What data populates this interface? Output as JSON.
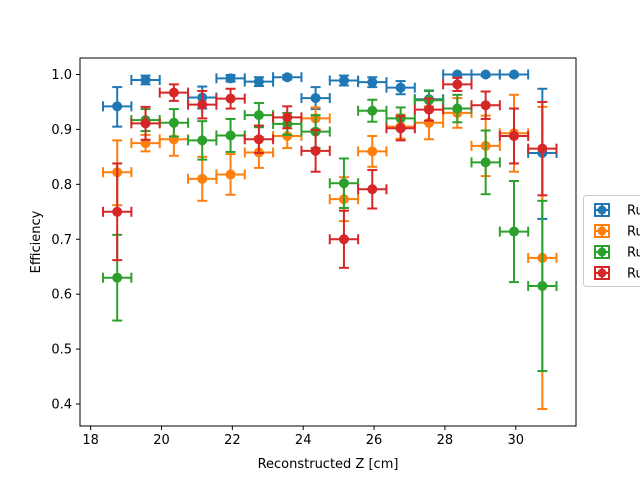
{
  "chart_data": {
    "type": "scatter",
    "title": "",
    "xlabel": "Reconstructed Z [cm]",
    "ylabel": "Efficiency",
    "xlim": [
      17.7,
      31.7
    ],
    "ylim": [
      0.36,
      1.03
    ],
    "xticks": [
      18,
      20,
      22,
      24,
      26,
      28,
      30
    ],
    "yticks": [
      0.4,
      0.5,
      0.6,
      0.7,
      0.8,
      0.9,
      1.0
    ],
    "xtick_labels": [
      "18",
      "20",
      "22",
      "24",
      "26",
      "28",
      "30"
    ],
    "ytick_labels": [
      "0.4",
      "0.5",
      "0.6",
      "0.7",
      "0.8",
      "0.9",
      "1.0"
    ],
    "grid": false,
    "legend_position": "right, partially clipped",
    "x_half_width": 0.4,
    "series": [
      {
        "name": "Ru",
        "color": "#1f77b4",
        "points": [
          {
            "x": 18.75,
            "y": 0.942,
            "yerr_low": 0.037,
            "yerr_high": 0.035
          },
          {
            "x": 19.55,
            "y": 0.99,
            "yerr_low": 0.008,
            "yerr_high": 0.008
          },
          {
            "x": 21.15,
            "y": 0.958,
            "yerr_low": 0.02,
            "yerr_high": 0.02
          },
          {
            "x": 21.95,
            "y": 0.993,
            "yerr_low": 0.006,
            "yerr_high": 0.006
          },
          {
            "x": 22.75,
            "y": 0.987,
            "yerr_low": 0.008,
            "yerr_high": 0.008
          },
          {
            "x": 23.55,
            "y": 0.995,
            "yerr_low": 0.004,
            "yerr_high": 0.004
          },
          {
            "x": 24.35,
            "y": 0.957,
            "yerr_low": 0.02,
            "yerr_high": 0.02
          },
          {
            "x": 25.15,
            "y": 0.989,
            "yerr_low": 0.009,
            "yerr_high": 0.009
          },
          {
            "x": 25.95,
            "y": 0.986,
            "yerr_low": 0.009,
            "yerr_high": 0.009
          },
          {
            "x": 26.75,
            "y": 0.976,
            "yerr_low": 0.012,
            "yerr_high": 0.012
          },
          {
            "x": 27.55,
            "y": 0.955,
            "yerr_low": 0.015,
            "yerr_high": 0.015
          },
          {
            "x": 28.35,
            "y": 1.0,
            "yerr_low": 0.004,
            "yerr_high": 0.0
          },
          {
            "x": 29.15,
            "y": 1.0,
            "yerr_low": 0.003,
            "yerr_high": 0.0
          },
          {
            "x": 29.95,
            "y": 1.0,
            "yerr_low": 0.003,
            "yerr_high": 0.0
          },
          {
            "x": 30.75,
            "y": 0.857,
            "yerr_low": 0.12,
            "yerr_high": 0.117
          }
        ]
      },
      {
        "name": "Ru",
        "color": "#ff7f0e",
        "points": [
          {
            "x": 18.75,
            "y": 0.822,
            "yerr_low": 0.06,
            "yerr_high": 0.058
          },
          {
            "x": 19.55,
            "y": 0.875,
            "yerr_low": 0.015,
            "yerr_high": 0.015
          },
          {
            "x": 20.35,
            "y": 0.882,
            "yerr_low": 0.03,
            "yerr_high": 0.03
          },
          {
            "x": 21.15,
            "y": 0.81,
            "yerr_low": 0.04,
            "yerr_high": 0.04
          },
          {
            "x": 21.95,
            "y": 0.818,
            "yerr_low": 0.037,
            "yerr_high": 0.037
          },
          {
            "x": 22.75,
            "y": 0.858,
            "yerr_low": 0.028,
            "yerr_high": 0.028
          },
          {
            "x": 23.55,
            "y": 0.888,
            "yerr_low": 0.022,
            "yerr_high": 0.022
          },
          {
            "x": 24.35,
            "y": 0.92,
            "yerr_low": 0.02,
            "yerr_high": 0.02
          },
          {
            "x": 25.15,
            "y": 0.773,
            "yerr_low": 0.04,
            "yerr_high": 0.04
          },
          {
            "x": 25.95,
            "y": 0.86,
            "yerr_low": 0.028,
            "yerr_high": 0.028
          },
          {
            "x": 26.75,
            "y": 0.905,
            "yerr_low": 0.022,
            "yerr_high": 0.022
          },
          {
            "x": 27.55,
            "y": 0.912,
            "yerr_low": 0.03,
            "yerr_high": 0.03
          },
          {
            "x": 28.35,
            "y": 0.93,
            "yerr_low": 0.027,
            "yerr_high": 0.027
          },
          {
            "x": 29.15,
            "y": 0.87,
            "yerr_low": 0.055,
            "yerr_high": 0.055
          },
          {
            "x": 29.95,
            "y": 0.893,
            "yerr_low": 0.07,
            "yerr_high": 0.07
          },
          {
            "x": 30.75,
            "y": 0.666,
            "yerr_low": 0.275,
            "yerr_high": 0.275
          }
        ]
      },
      {
        "name": "Ru",
        "color": "#2ca02c",
        "points": [
          {
            "x": 18.75,
            "y": 0.63,
            "yerr_low": 0.078,
            "yerr_high": 0.078
          },
          {
            "x": 19.55,
            "y": 0.917,
            "yerr_low": 0.02,
            "yerr_high": 0.02
          },
          {
            "x": 20.35,
            "y": 0.912,
            "yerr_low": 0.025,
            "yerr_high": 0.025
          },
          {
            "x": 21.15,
            "y": 0.88,
            "yerr_low": 0.035,
            "yerr_high": 0.035
          },
          {
            "x": 21.95,
            "y": 0.889,
            "yerr_low": 0.03,
            "yerr_high": 0.03
          },
          {
            "x": 22.75,
            "y": 0.926,
            "yerr_low": 0.022,
            "yerr_high": 0.022
          },
          {
            "x": 23.55,
            "y": 0.91,
            "yerr_low": 0.02,
            "yerr_high": 0.02
          },
          {
            "x": 24.35,
            "y": 0.896,
            "yerr_low": 0.03,
            "yerr_high": 0.03
          },
          {
            "x": 25.15,
            "y": 0.802,
            "yerr_low": 0.045,
            "yerr_high": 0.045
          },
          {
            "x": 25.95,
            "y": 0.934,
            "yerr_low": 0.02,
            "yerr_high": 0.02
          },
          {
            "x": 26.75,
            "y": 0.92,
            "yerr_low": 0.02,
            "yerr_high": 0.02
          },
          {
            "x": 27.55,
            "y": 0.953,
            "yerr_low": 0.018,
            "yerr_high": 0.018
          },
          {
            "x": 28.35,
            "y": 0.938,
            "yerr_low": 0.025,
            "yerr_high": 0.025
          },
          {
            "x": 29.15,
            "y": 0.84,
            "yerr_low": 0.058,
            "yerr_high": 0.058
          },
          {
            "x": 29.95,
            "y": 0.714,
            "yerr_low": 0.092,
            "yerr_high": 0.092
          },
          {
            "x": 30.75,
            "y": 0.615,
            "yerr_low": 0.155,
            "yerr_high": 0.155
          }
        ]
      },
      {
        "name": "Ru",
        "color": "#d62728",
        "points": [
          {
            "x": 18.75,
            "y": 0.75,
            "yerr_low": 0.088,
            "yerr_high": 0.088
          },
          {
            "x": 19.55,
            "y": 0.911,
            "yerr_low": 0.03,
            "yerr_high": 0.03
          },
          {
            "x": 20.35,
            "y": 0.967,
            "yerr_low": 0.015,
            "yerr_high": 0.015
          },
          {
            "x": 21.15,
            "y": 0.945,
            "yerr_low": 0.025,
            "yerr_high": 0.025
          },
          {
            "x": 21.95,
            "y": 0.956,
            "yerr_low": 0.018,
            "yerr_high": 0.018
          },
          {
            "x": 22.75,
            "y": 0.882,
            "yerr_low": 0.025,
            "yerr_high": 0.025
          },
          {
            "x": 23.55,
            "y": 0.922,
            "yerr_low": 0.02,
            "yerr_high": 0.02
          },
          {
            "x": 24.35,
            "y": 0.861,
            "yerr_low": 0.038,
            "yerr_high": 0.038
          },
          {
            "x": 25.15,
            "y": 0.7,
            "yerr_low": 0.052,
            "yerr_high": 0.052
          },
          {
            "x": 25.95,
            "y": 0.791,
            "yerr_low": 0.035,
            "yerr_high": 0.035
          },
          {
            "x": 26.75,
            "y": 0.902,
            "yerr_low": 0.022,
            "yerr_high": 0.022
          },
          {
            "x": 27.55,
            "y": 0.936,
            "yerr_low": 0.02,
            "yerr_high": 0.02
          },
          {
            "x": 28.35,
            "y": 0.982,
            "yerr_low": 0.012,
            "yerr_high": 0.012
          },
          {
            "x": 29.15,
            "y": 0.944,
            "yerr_low": 0.025,
            "yerr_high": 0.025
          },
          {
            "x": 29.95,
            "y": 0.888,
            "yerr_low": 0.05,
            "yerr_high": 0.05
          },
          {
            "x": 30.75,
            "y": 0.865,
            "yerr_low": 0.085,
            "yerr_high": 0.085
          }
        ]
      }
    ]
  }
}
